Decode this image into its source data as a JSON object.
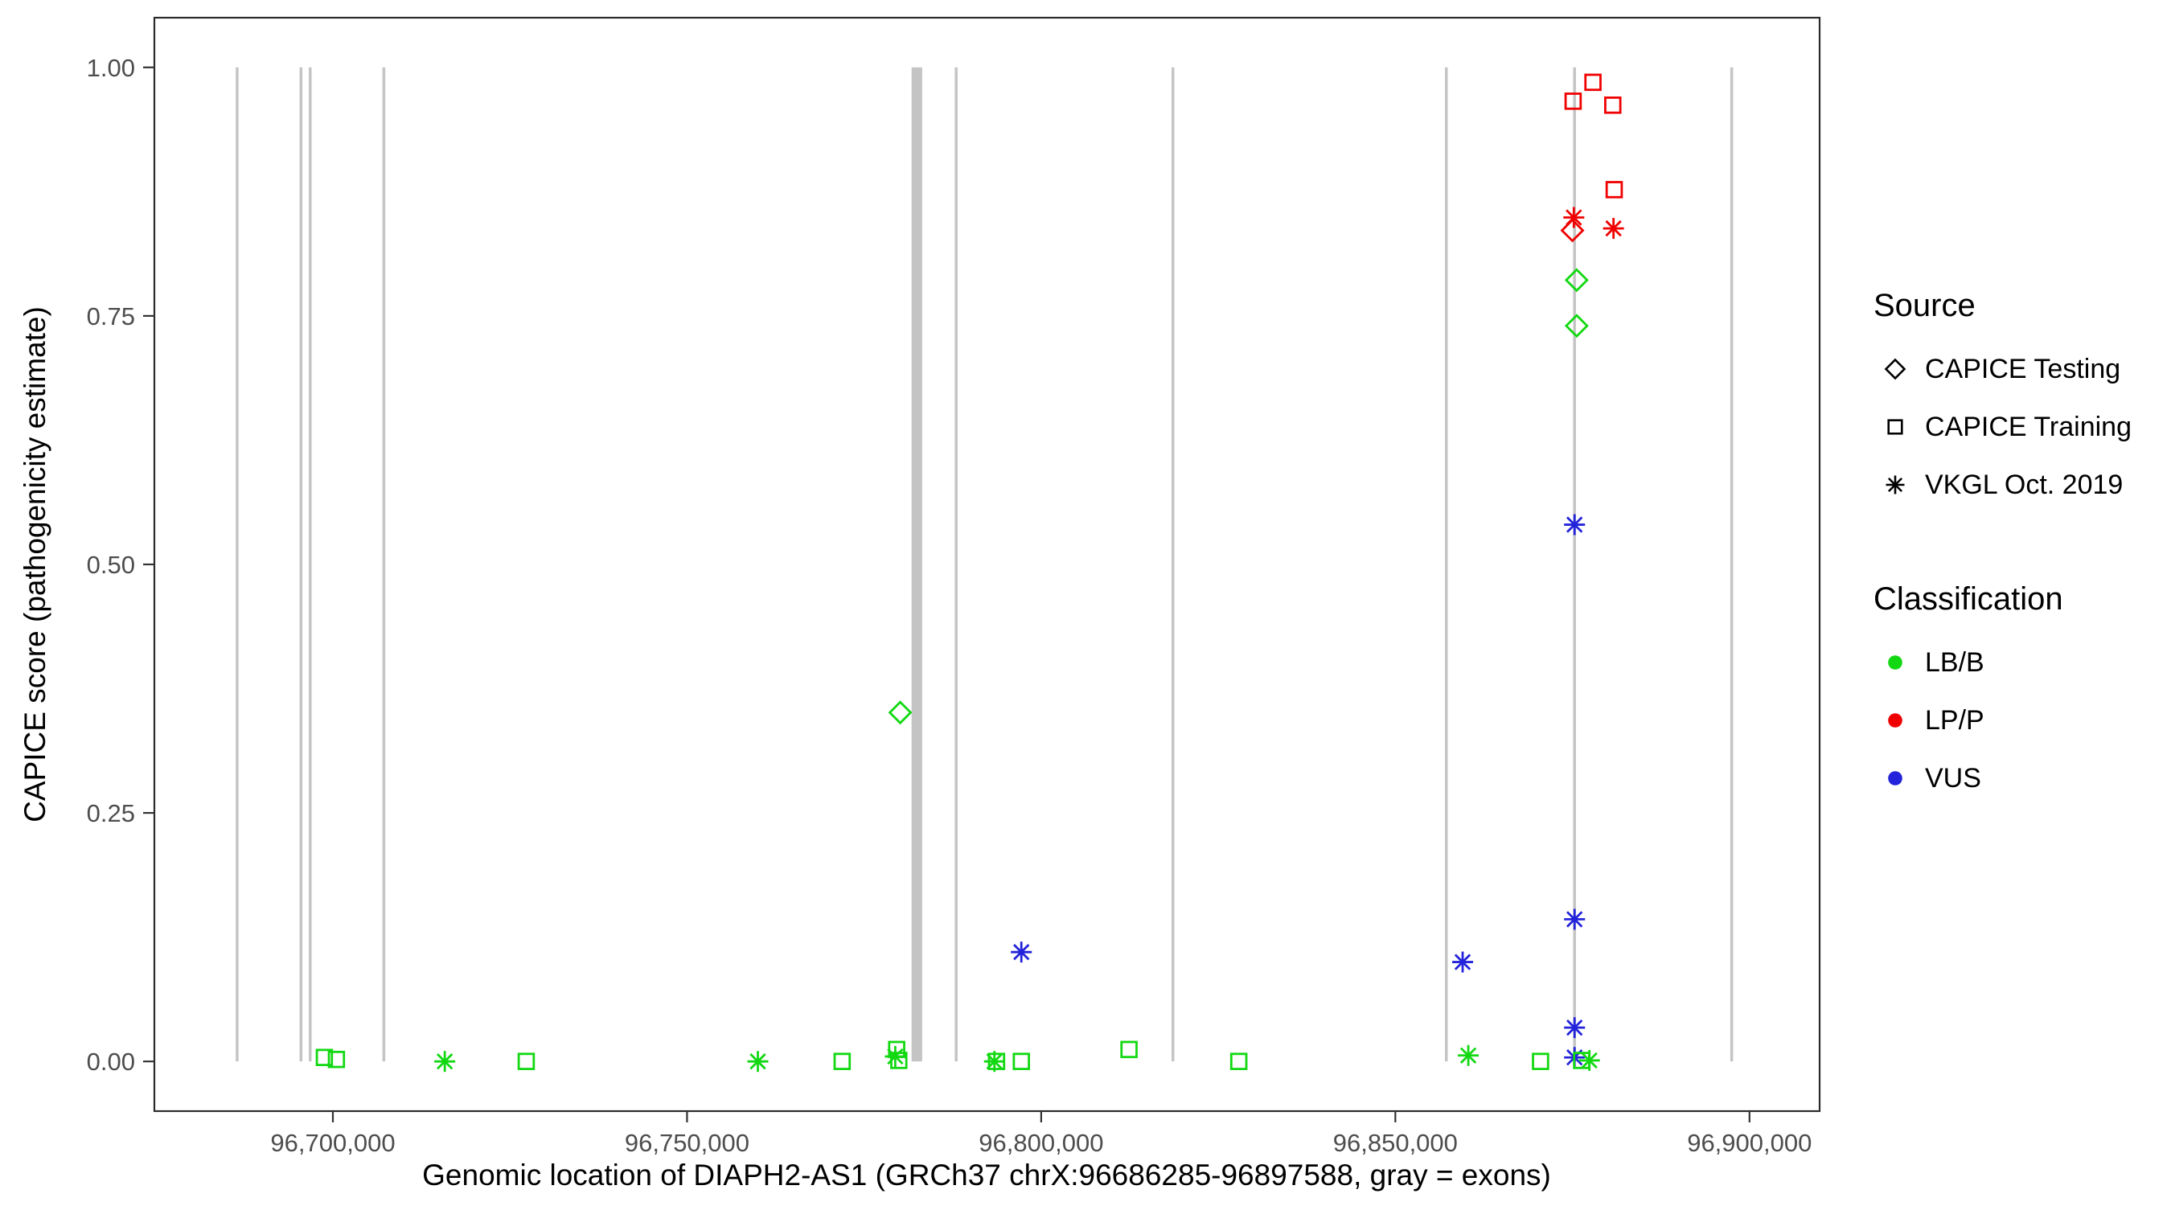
{
  "chart_data": {
    "type": "scatter",
    "title": "",
    "xlabel": "Genomic location of DIAPH2-AS1 (GRCh37 chrX:96686285-96897588, gray = exons)",
    "ylabel": "CAPICE score (pathogenicity estimate)",
    "x_domain": [
      96674800,
      96909900
    ],
    "y_domain": [
      -0.05,
      1.05
    ],
    "grid": "off",
    "legend_position": "right",
    "x_ticks": [
      {
        "v": 96700000,
        "label": "96,700,000"
      },
      {
        "v": 96750000,
        "label": "96,750,000"
      },
      {
        "v": 96800000,
        "label": "96,800,000"
      },
      {
        "v": 96850000,
        "label": "96,850,000"
      },
      {
        "v": 96900000,
        "label": "96,900,000"
      }
    ],
    "y_ticks": [
      {
        "v": 0.0,
        "label": "0.00"
      },
      {
        "v": 0.25,
        "label": "0.25"
      },
      {
        "v": 0.5,
        "label": "0.50"
      },
      {
        "v": 0.75,
        "label": "0.75"
      },
      {
        "v": 1.0,
        "label": "1.00"
      }
    ],
    "exon_color": "#C4C4C4",
    "exons": [
      [
        96686285,
        96686585
      ],
      [
        96695300,
        96695600
      ],
      [
        96696600,
        96696900
      ],
      [
        96707000,
        96707300
      ],
      [
        96781700,
        96783200
      ],
      [
        96787800,
        96788100
      ],
      [
        96818400,
        96818700
      ],
      [
        96857000,
        96857300
      ],
      [
        96875100,
        96875400
      ],
      [
        96897288,
        96897588
      ]
    ],
    "source_shapes": {
      "CAPICE Testing": "diamond",
      "CAPICE Training": "square",
      "VKGL Oct. 2019": "asterisk"
    },
    "classification_colors": {
      "LB/B": "#12D812",
      "LP/P": "#F00000",
      "VUS": "#2323DB"
    },
    "points": [
      {
        "x": 96698800,
        "y": 0.004,
        "source": "CAPICE Training",
        "class": "LB/B"
      },
      {
        "x": 96700500,
        "y": 0.002,
        "source": "CAPICE Training",
        "class": "LB/B"
      },
      {
        "x": 96715800,
        "y": 0.0,
        "source": "VKGL Oct. 2019",
        "class": "LB/B"
      },
      {
        "x": 96727300,
        "y": 0.0,
        "source": "CAPICE Training",
        "class": "LB/B"
      },
      {
        "x": 96760000,
        "y": 0.0,
        "source": "VKGL Oct. 2019",
        "class": "LB/B"
      },
      {
        "x": 96771900,
        "y": 0.0,
        "source": "CAPICE Training",
        "class": "LB/B"
      },
      {
        "x": 96779600,
        "y": 0.012,
        "source": "CAPICE Training",
        "class": "LB/B"
      },
      {
        "x": 96779400,
        "y": 0.005,
        "source": "VKGL Oct. 2019",
        "class": "LB/B"
      },
      {
        "x": 96779900,
        "y": 0.001,
        "source": "CAPICE Training",
        "class": "LB/B"
      },
      {
        "x": 96780100,
        "y": 0.351,
        "source": "CAPICE Testing",
        "class": "LB/B"
      },
      {
        "x": 96793400,
        "y": 0.0,
        "source": "VKGL Oct. 2019",
        "class": "LB/B"
      },
      {
        "x": 96793700,
        "y": 0.0,
        "source": "CAPICE Training",
        "class": "LB/B"
      },
      {
        "x": 96797200,
        "y": 0.0,
        "source": "CAPICE Training",
        "class": "LB/B"
      },
      {
        "x": 96797200,
        "y": 0.11,
        "source": "VKGL Oct. 2019",
        "class": "VUS"
      },
      {
        "x": 96812400,
        "y": 0.012,
        "source": "CAPICE Training",
        "class": "LB/B"
      },
      {
        "x": 96827900,
        "y": 0.0,
        "source": "CAPICE Training",
        "class": "LB/B"
      },
      {
        "x": 96859500,
        "y": 0.1,
        "source": "VKGL Oct. 2019",
        "class": "VUS"
      },
      {
        "x": 96860300,
        "y": 0.006,
        "source": "VKGL Oct. 2019",
        "class": "LB/B"
      },
      {
        "x": 96870500,
        "y": 0.0,
        "source": "CAPICE Training",
        "class": "LB/B"
      },
      {
        "x": 96875100,
        "y": 0.966,
        "source": "CAPICE Training",
        "class": "LP/P"
      },
      {
        "x": 96877900,
        "y": 0.985,
        "source": "CAPICE Training",
        "class": "LP/P"
      },
      {
        "x": 96880700,
        "y": 0.962,
        "source": "CAPICE Training",
        "class": "LP/P"
      },
      {
        "x": 96880900,
        "y": 0.877,
        "source": "CAPICE Training",
        "class": "LP/P"
      },
      {
        "x": 96875200,
        "y": 0.849,
        "source": "VKGL Oct. 2019",
        "class": "LP/P"
      },
      {
        "x": 96875000,
        "y": 0.836,
        "source": "CAPICE Testing",
        "class": "LP/P"
      },
      {
        "x": 96880800,
        "y": 0.838,
        "source": "VKGL Oct. 2019",
        "class": "LP/P"
      },
      {
        "x": 96875600,
        "y": 0.786,
        "source": "CAPICE Testing",
        "class": "LB/B"
      },
      {
        "x": 96875600,
        "y": 0.74,
        "source": "CAPICE Testing",
        "class": "LB/B"
      },
      {
        "x": 96875300,
        "y": 0.54,
        "source": "VKGL Oct. 2019",
        "class": "VUS"
      },
      {
        "x": 96875300,
        "y": 0.143,
        "source": "VKGL Oct. 2019",
        "class": "VUS"
      },
      {
        "x": 96875300,
        "y": 0.034,
        "source": "VKGL Oct. 2019",
        "class": "VUS"
      },
      {
        "x": 96875300,
        "y": 0.004,
        "source": "VKGL Oct. 2019",
        "class": "VUS"
      },
      {
        "x": 96876300,
        "y": 0.001,
        "source": "CAPICE Training",
        "class": "LB/B"
      },
      {
        "x": 96877400,
        "y": 0.001,
        "source": "VKGL Oct. 2019",
        "class": "LB/B"
      }
    ],
    "legend": {
      "source_title": "Source",
      "source_items": [
        {
          "shape": "diamond",
          "label": "CAPICE Testing"
        },
        {
          "shape": "square",
          "label": "CAPICE Training"
        },
        {
          "shape": "asterisk",
          "label": "VKGL Oct. 2019"
        }
      ],
      "classification_title": "Classification",
      "classification_items": [
        {
          "color": "#12D812",
          "label": "LB/B"
        },
        {
          "color": "#F00000",
          "label": "LP/P"
        },
        {
          "color": "#2323DB",
          "label": "VUS"
        }
      ]
    }
  }
}
